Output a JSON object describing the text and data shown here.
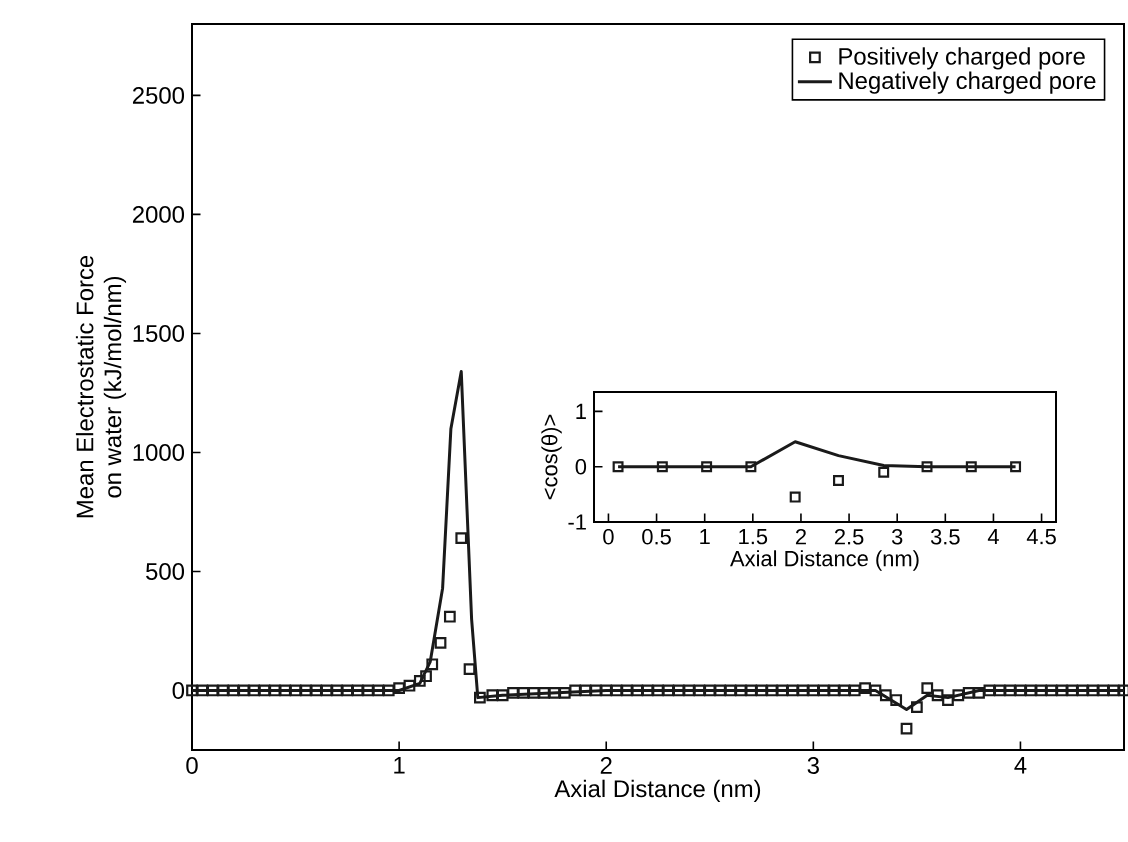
{
  "chart_data": [
    {
      "type": "line",
      "xlabel": "Axial Distance (nm)",
      "ylabel": "Mean Electrostatic Force\non water (kJ/mol/nm)",
      "xlim": [
        0,
        4.5
      ],
      "ylim": [
        -250,
        2800
      ],
      "xticks": [
        0,
        1,
        2,
        3,
        4
      ],
      "yticks": [
        0,
        500,
        1000,
        1500,
        2000,
        2500
      ],
      "legend": "top right",
      "grid": false,
      "series": [
        {
          "name": "Positively charged pore",
          "type": "scatter",
          "marker": "square",
          "color": "#1a1a1a",
          "x": [
            0,
            0.05,
            0.1,
            0.15,
            0.2,
            0.25,
            0.3,
            0.35,
            0.4,
            0.45,
            0.5,
            0.55,
            0.6,
            0.65,
            0.7,
            0.75,
            0.8,
            0.85,
            0.9,
            0.95,
            1.0,
            1.05,
            1.1,
            1.13,
            1.16,
            1.2,
            1.245,
            1.3,
            1.34,
            1.39,
            1.45,
            1.5,
            1.55,
            1.6,
            1.65,
            1.7,
            1.75,
            1.8,
            1.85,
            1.9,
            1.95,
            2.0,
            2.05,
            2.1,
            2.15,
            2.2,
            2.25,
            2.3,
            2.35,
            2.4,
            2.45,
            2.5,
            2.55,
            2.6,
            2.65,
            2.7,
            2.75,
            2.8,
            2.85,
            2.9,
            2.95,
            3.0,
            3.05,
            3.1,
            3.15,
            3.2,
            3.25,
            3.3,
            3.35,
            3.4,
            3.45,
            3.5,
            3.55,
            3.6,
            3.65,
            3.7,
            3.75,
            3.8,
            3.85,
            3.9,
            3.95,
            4.0,
            4.05,
            4.1,
            4.15,
            4.2,
            4.25,
            4.3,
            4.35,
            4.4,
            4.45,
            4.5
          ],
          "values": [
            0,
            0,
            0,
            0,
            0,
            0,
            0,
            0,
            0,
            0,
            0,
            0,
            0,
            0,
            0,
            0,
            0,
            0,
            0,
            0,
            10,
            20,
            40,
            60,
            110,
            200,
            310,
            640,
            90,
            -30,
            -20,
            -20,
            -10,
            -10,
            -10,
            -10,
            -10,
            -10,
            0,
            0,
            0,
            0,
            0,
            0,
            0,
            0,
            0,
            0,
            0,
            0,
            0,
            0,
            0,
            0,
            0,
            0,
            0,
            0,
            0,
            0,
            0,
            0,
            0,
            0,
            0,
            0,
            10,
            0,
            -20,
            -40,
            -160,
            -70,
            10,
            -20,
            -40,
            -20,
            -10,
            -10,
            0,
            0,
            0,
            0,
            0,
            0,
            0,
            0,
            0,
            0,
            0,
            0,
            0,
            0
          ]
        },
        {
          "name": "Negatively charged pore",
          "line_style": "solid",
          "color": "#1a1a1a",
          "x": [
            0,
            1.0,
            1.1,
            1.15,
            1.21,
            1.25,
            1.3,
            1.35,
            1.38,
            1.5,
            2.0,
            3.3,
            3.45,
            3.55,
            3.65,
            3.8,
            4.5
          ],
          "values": [
            0,
            0,
            30,
            120,
            430,
            1100,
            1340,
            300,
            -30,
            -20,
            0,
            0,
            -80,
            -20,
            -30,
            0,
            0
          ]
        }
      ]
    },
    {
      "type": "line",
      "xlabel": "Axial Distance (nm)",
      "ylabel": "<cos(θ)>",
      "xlim": [
        -0.15,
        4.65
      ],
      "ylim": [
        -1,
        1.35
      ],
      "xticks": [
        0,
        0.5,
        1,
        1.5,
        2,
        2.5,
        3,
        3.5,
        4,
        4.5
      ],
      "yticks": [
        -1,
        0,
        1
      ],
      "grid": false,
      "series": [
        {
          "type": "scatter",
          "marker": "square",
          "color": "#1a1a1a",
          "x": [
            0.1,
            0.56,
            1.02,
            1.48,
            1.94,
            2.39,
            2.86,
            3.31,
            3.77,
            4.23
          ],
          "values": [
            0,
            0,
            0,
            0,
            -0.55,
            -0.25,
            -0.1,
            0,
            0,
            0
          ]
        },
        {
          "line_style": "solid",
          "color": "#1a1a1a",
          "x": [
            0.1,
            1.48,
            1.94,
            2.39,
            2.86,
            3.31,
            4.23
          ],
          "values": [
            0,
            0,
            0.45,
            0.2,
            0.02,
            0,
            0
          ]
        }
      ]
    }
  ]
}
